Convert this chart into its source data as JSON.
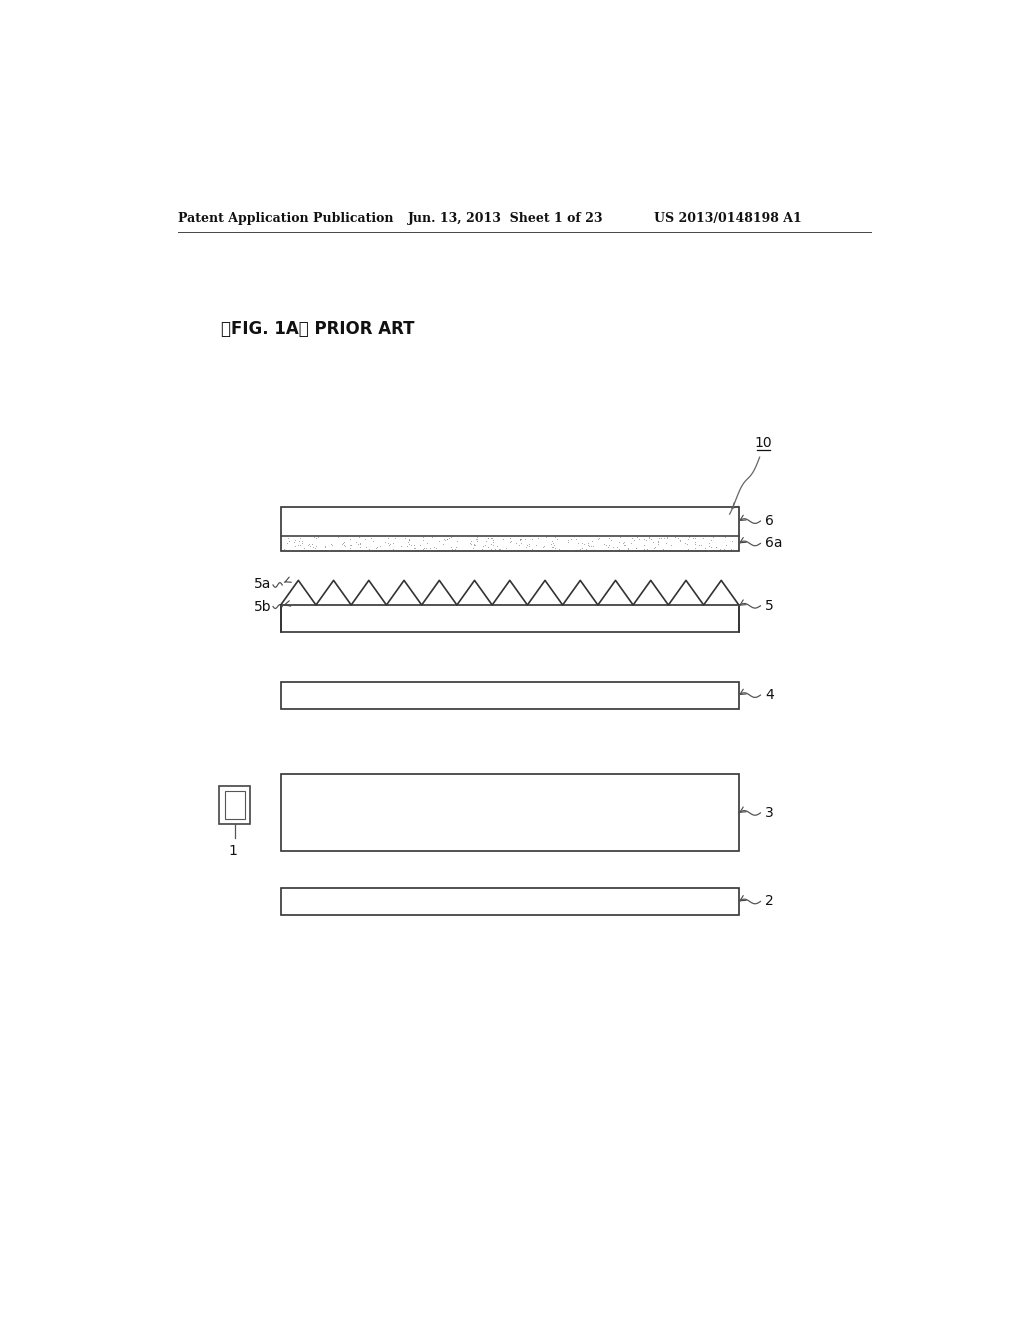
{
  "bg_color": "#ffffff",
  "header_left": "Patent Application Publication",
  "header_mid": "Jun. 13, 2013  Sheet 1 of 23",
  "header_right": "US 2013/0148198 A1",
  "fig_label": "』FIG. 1A』 PRIOR ART",
  "fig_label_bracket": "[』FIG. 1A』 PRIOR ART]",
  "layer6_label": "6",
  "layer6a_label": "6a",
  "layer5_label": "5",
  "layer5a_label": "5a",
  "layer5b_label": "5b",
  "layer4_label": "4",
  "layer3_label": "3",
  "layer2_label": "2",
  "label10": "10",
  "label1": "1",
  "lc": "#111111",
  "lw": 1.2
}
